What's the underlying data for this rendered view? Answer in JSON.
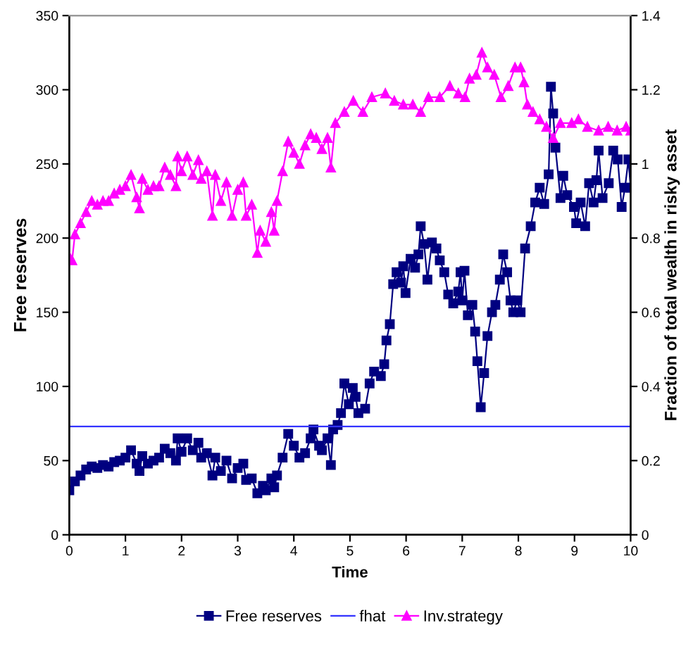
{
  "chart_data": {
    "type": "line",
    "xlabel": "Time",
    "ylabel": "Free reserves",
    "y2label": "Fraction of total wealth in risky asset",
    "xlim": [
      0,
      10
    ],
    "xticks": [
      0,
      1,
      2,
      3,
      4,
      5,
      6,
      7,
      8,
      9,
      10
    ],
    "ylim": [
      0,
      350
    ],
    "yticks": [
      0,
      50,
      100,
      150,
      200,
      250,
      300,
      350
    ],
    "y2lim": [
      0,
      1.4
    ],
    "y2ticks": [
      0,
      {
        "value": 0.2,
        "label": "0.2"
      },
      {
        "value": 0.4,
        "label": "0.4"
      },
      {
        "value": 0.6,
        "label": "0.6"
      },
      {
        "value": 0.8,
        "label": "0.8"
      },
      1,
      {
        "value": 1.2,
        "label": "1.2"
      },
      {
        "value": 1.4,
        "label": "1.4"
      }
    ],
    "grid": false,
    "legend": "bottom",
    "line_style": "solid",
    "series": [
      {
        "name": "Free reserves",
        "color": "#000080",
        "marker": "square",
        "x": [
          0,
          0.1,
          0.2,
          0.3,
          0.4,
          0.5,
          0.6,
          0.7,
          0.8,
          0.9,
          1.0,
          1.1,
          1.2,
          1.25,
          1.3,
          1.4,
          1.5,
          1.6,
          1.7,
          1.8,
          1.9,
          1.93,
          2.0,
          2.1,
          2.2,
          2.3,
          2.35,
          2.45,
          2.55,
          2.6,
          2.7,
          2.8,
          2.9,
          3.0,
          3.1,
          3.15,
          3.25,
          3.35,
          3.45,
          3.5,
          3.6,
          3.65,
          3.7,
          3.8,
          3.9,
          4.0,
          4.1,
          4.2,
          4.3,
          4.35,
          4.45,
          4.5,
          4.6,
          4.66,
          4.7,
          4.78,
          4.84,
          4.9,
          4.98,
          5.05,
          5.1,
          5.15,
          5.27,
          5.35,
          5.43,
          5.55,
          5.61,
          5.65,
          5.71,
          5.77,
          5.83,
          5.91,
          5.95,
          5.99,
          6.08,
          6.16,
          6.22,
          6.26,
          6.32,
          6.38,
          6.46,
          6.54,
          6.6,
          6.68,
          6.75,
          6.84,
          6.93,
          6.97,
          7.0,
          7.04,
          7.1,
          7.18,
          7.23,
          7.27,
          7.33,
          7.39,
          7.45,
          7.53,
          7.59,
          7.67,
          7.73,
          7.8,
          7.86,
          7.91,
          7.98,
          8.04,
          8.12,
          8.22,
          8.3,
          8.38,
          8.46,
          8.54,
          8.58,
          8.62,
          8.66,
          8.75,
          8.8,
          8.87,
          8.99,
          9.03,
          9.11,
          9.19,
          9.26,
          9.34,
          9.39,
          9.43,
          9.5,
          9.61,
          9.69,
          9.77,
          9.84,
          9.9,
          9.96,
          10
        ],
        "values": [
          30,
          36,
          40,
          44,
          46,
          45,
          47,
          46,
          49,
          50,
          52,
          57,
          48,
          43,
          53,
          48,
          50,
          52,
          58,
          55,
          50,
          65,
          56,
          65,
          57,
          62,
          52,
          55,
          40,
          52,
          43,
          50,
          38,
          45,
          48,
          37,
          38,
          28,
          33,
          30,
          38,
          32,
          40,
          52,
          68,
          60,
          52,
          55,
          65,
          71,
          60,
          57,
          65,
          47,
          71,
          74,
          82,
          102,
          88,
          99,
          93,
          82,
          85,
          102,
          110,
          107,
          115,
          131,
          142,
          169,
          177,
          170,
          181,
          163,
          186,
          180,
          189,
          208,
          196,
          172,
          197,
          193,
          185,
          177,
          162,
          156,
          164,
          177,
          158,
          178,
          148,
          155,
          137,
          117,
          86,
          109,
          134,
          150,
          155,
          172,
          189,
          177,
          158,
          150,
          158,
          150,
          193,
          208,
          224,
          234,
          223,
          243,
          302,
          284,
          261,
          227,
          242,
          229,
          221,
          210,
          224,
          208,
          237,
          224,
          239,
          259,
          227,
          237,
          259,
          253,
          221,
          234,
          253,
          234
        ]
      },
      {
        "name": "fhat",
        "color": "#3333ff",
        "marker": "none",
        "x": [
          0,
          10
        ],
        "values": [
          73,
          73
        ]
      },
      {
        "name": "Inv.strategy",
        "color": "#ff00ff",
        "marker": "triangle",
        "axis": "y2",
        "x": [
          0,
          0.05,
          0.1,
          0.2,
          0.3,
          0.4,
          0.5,
          0.6,
          0.7,
          0.8,
          0.9,
          1.0,
          1.1,
          1.2,
          1.25,
          1.3,
          1.4,
          1.5,
          1.6,
          1.7,
          1.8,
          1.9,
          1.93,
          2.0,
          2.1,
          2.2,
          2.3,
          2.35,
          2.45,
          2.55,
          2.6,
          2.7,
          2.8,
          2.9,
          3.0,
          3.1,
          3.15,
          3.25,
          3.35,
          3.4,
          3.5,
          3.6,
          3.65,
          3.7,
          3.8,
          3.9,
          4.0,
          4.1,
          4.2,
          4.3,
          4.4,
          4.5,
          4.6,
          4.66,
          4.74,
          4.9,
          5.06,
          5.23,
          5.39,
          5.63,
          5.79,
          5.95,
          6.12,
          6.26,
          6.4,
          6.6,
          6.78,
          6.93,
          7.05,
          7.13,
          7.25,
          7.35,
          7.45,
          7.57,
          7.69,
          7.82,
          7.94,
          8.04,
          8.1,
          8.16,
          8.26,
          8.38,
          8.5,
          8.62,
          8.75,
          8.95,
          9.07,
          9.23,
          9.43,
          9.6,
          9.76,
          9.92,
          10
        ],
        "values": [
          0.75,
          0.74,
          0.81,
          0.84,
          0.87,
          0.9,
          0.89,
          0.9,
          0.9,
          0.92,
          0.93,
          0.94,
          0.97,
          0.91,
          0.88,
          0.96,
          0.93,
          0.94,
          0.94,
          0.99,
          0.97,
          0.94,
          1.02,
          0.98,
          1.02,
          0.97,
          1.01,
          0.96,
          0.98,
          0.86,
          0.97,
          0.9,
          0.95,
          0.86,
          0.93,
          0.95,
          0.86,
          0.89,
          0.76,
          0.82,
          0.79,
          0.87,
          0.82,
          0.9,
          0.98,
          1.06,
          1.03,
          1.0,
          1.05,
          1.08,
          1.07,
          1.04,
          1.07,
          0.99,
          1.11,
          1.14,
          1.17,
          1.14,
          1.18,
          1.19,
          1.17,
          1.16,
          1.16,
          1.14,
          1.18,
          1.18,
          1.21,
          1.19,
          1.18,
          1.23,
          1.24,
          1.3,
          1.26,
          1.24,
          1.18,
          1.21,
          1.26,
          1.26,
          1.22,
          1.16,
          1.14,
          1.12,
          1.1,
          1.07,
          1.11,
          1.11,
          1.12,
          1.1,
          1.09,
          1.1,
          1.09,
          1.1,
          1.09
        ]
      }
    ]
  }
}
